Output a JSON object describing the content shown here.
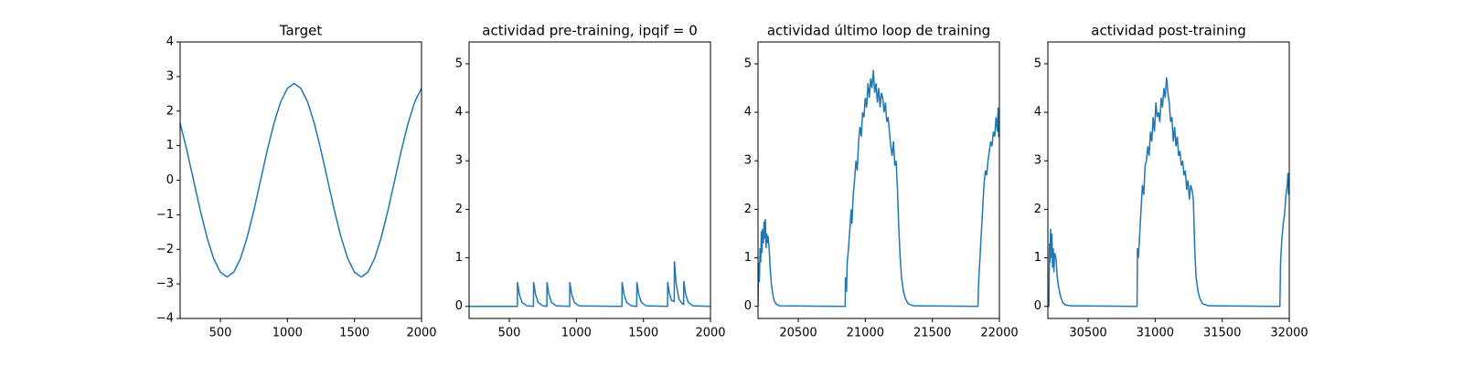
{
  "chart_data": [
    {
      "type": "line",
      "title": "Target",
      "color": "#1f77b4",
      "x": [
        200,
        250,
        300,
        350,
        400,
        450,
        500,
        550,
        600,
        650,
        700,
        750,
        800,
        850,
        900,
        950,
        1000,
        1050,
        1100,
        1150,
        1200,
        1250,
        1300,
        1350,
        1400,
        1450,
        1500,
        1550,
        1600,
        1650,
        1700,
        1750,
        1800,
        1850,
        1900,
        1950,
        2000
      ],
      "values": [
        1.65,
        0.87,
        0,
        -0.87,
        -1.65,
        -2.27,
        -2.66,
        -2.8,
        -2.66,
        -2.27,
        -1.65,
        -0.87,
        0,
        0.87,
        1.65,
        2.27,
        2.66,
        2.8,
        2.66,
        2.27,
        1.65,
        0.87,
        0,
        -0.87,
        -1.65,
        -2.27,
        -2.66,
        -2.8,
        -2.66,
        -2.27,
        -1.65,
        -0.87,
        0,
        0.87,
        1.65,
        2.27,
        2.66
      ],
      "xlim": [
        200,
        2000
      ],
      "xticks": [
        500,
        1000,
        1500,
        2000
      ],
      "ylim": [
        -4,
        4
      ],
      "yticks": [
        {
          "value": -4,
          "label": "−4"
        },
        {
          "value": -3,
          "label": "−3"
        },
        {
          "value": -2,
          "label": "−2"
        },
        {
          "value": -1,
          "label": "−1"
        },
        0,
        1,
        2,
        3,
        4
      ]
    },
    {
      "type": "line",
      "title": "actividad pre-training, ipqif = 0",
      "color": "#1f77b4",
      "x": [
        200,
        560,
        561,
        575,
        595,
        630,
        680,
        681,
        695,
        715,
        750,
        780,
        781,
        795,
        815,
        850,
        950,
        951,
        965,
        985,
        1020,
        1340,
        1341,
        1355,
        1375,
        1410,
        1450,
        1451,
        1465,
        1485,
        1520,
        1680,
        1681,
        1695,
        1710,
        1730,
        1731,
        1745,
        1765,
        1790,
        1800,
        1801,
        1815,
        1835,
        1870,
        2000
      ],
      "values": [
        0,
        0,
        0.5,
        0.25,
        0.08,
        0.01,
        0,
        0.5,
        0.25,
        0.08,
        0.01,
        0,
        0.5,
        0.25,
        0.08,
        0.01,
        0,
        0.5,
        0.25,
        0.08,
        0.01,
        0,
        0.5,
        0.25,
        0.08,
        0.01,
        0,
        0.5,
        0.25,
        0.08,
        0.01,
        0,
        0.5,
        0.25,
        0.12,
        0.1,
        0.93,
        0.45,
        0.15,
        0.05,
        0.04,
        0.52,
        0.25,
        0.08,
        0.01,
        0
      ],
      "xlim": [
        200,
        2000
      ],
      "xticks": [
        500,
        1000,
        1500,
        2000
      ],
      "ylim": [
        -0.25,
        5.45
      ],
      "yticks": [
        0,
        1,
        2,
        3,
        4,
        5
      ]
    },
    {
      "type": "line",
      "title": "actividad último loop de training",
      "color": "#1f77b4",
      "x": [
        20200,
        20205,
        20210,
        20215,
        20220,
        20225,
        20230,
        20235,
        20240,
        20245,
        20250,
        20255,
        20260,
        20265,
        20270,
        20275,
        20280,
        20285,
        20290,
        20300,
        20310,
        20320,
        20335,
        20360,
        20850,
        20852,
        20860,
        20865,
        20875,
        20885,
        20895,
        20900,
        20910,
        20920,
        20930,
        20940,
        20950,
        20960,
        20970,
        20980,
        20990,
        21000,
        21010,
        21020,
        21030,
        21040,
        21050,
        21060,
        21070,
        21080,
        21090,
        21100,
        21110,
        21120,
        21130,
        21140,
        21150,
        21160,
        21170,
        21180,
        21190,
        21200,
        21210,
        21220,
        21230,
        21240,
        21250,
        21260,
        21270,
        21285,
        21300,
        21320,
        21360,
        21840,
        21845,
        21855,
        21865,
        21875,
        21885,
        21895,
        21905,
        21915,
        21925,
        21935,
        21945,
        21955,
        21965,
        21975,
        21985,
        21990,
        21995,
        22000
      ],
      "values": [
        0,
        0.9,
        0.5,
        1.2,
        0.9,
        1.55,
        1.1,
        1.6,
        1.3,
        1.75,
        1.4,
        1.8,
        1.2,
        1.5,
        1.3,
        1.45,
        1.3,
        1.1,
        0.8,
        0.45,
        0.25,
        0.12,
        0.05,
        0.01,
        0,
        0.6,
        0.3,
        0.9,
        1.2,
        1.6,
        2.0,
        1.7,
        2.3,
        2.6,
        3.0,
        2.8,
        3.4,
        3.7,
        3.5,
        4.0,
        3.9,
        4.3,
        4.1,
        4.6,
        4.3,
        4.7,
        4.5,
        4.87,
        4.4,
        4.6,
        4.2,
        4.5,
        4.1,
        4.4,
        4.3,
        4.0,
        4.2,
        3.8,
        3.9,
        3.6,
        3.3,
        3.1,
        3.4,
        2.9,
        3.0,
        2.4,
        1.6,
        1.0,
        0.6,
        0.3,
        0.15,
        0.05,
        0.01,
        0,
        0.5,
        1.0,
        1.5,
        2.0,
        2.5,
        2.8,
        2.7,
        3.0,
        3.2,
        3.4,
        3.3,
        3.6,
        3.5,
        3.9,
        3.6,
        4.1,
        3.5,
        3.5
      ],
      "xlim": [
        20200,
        22000
      ],
      "xticks": [
        20500,
        21000,
        21500,
        22000
      ],
      "ylim": [
        -0.25,
        5.45
      ],
      "yticks": [
        0,
        1,
        2,
        3,
        4,
        5
      ]
    },
    {
      "type": "line",
      "title": "actividad post-training",
      "color": "#1f77b4",
      "x": [
        30200,
        30208,
        30212,
        30216,
        30220,
        30225,
        30230,
        30235,
        30240,
        30245,
        30250,
        30260,
        30270,
        30280,
        30295,
        30310,
        30330,
        30370,
        30865,
        30868,
        30875,
        30885,
        30895,
        30905,
        30915,
        30925,
        30935,
        30945,
        30955,
        30965,
        30975,
        30985,
        30995,
        31005,
        31015,
        31025,
        31035,
        31045,
        31055,
        31065,
        31075,
        31085,
        31095,
        31105,
        31115,
        31125,
        31135,
        31145,
        31155,
        31165,
        31175,
        31185,
        31195,
        31205,
        31215,
        31225,
        31235,
        31245,
        31255,
        31265,
        31275,
        31285,
        31295,
        31305,
        31320,
        31335,
        31355,
        31400,
        31930,
        31935,
        31945,
        31955,
        31965,
        31975,
        31985,
        31990,
        31995,
        32000
      ],
      "values": [
        0,
        0,
        1.3,
        0.9,
        1.6,
        1.0,
        1.5,
        0.8,
        1.2,
        0.7,
        1.1,
        1.0,
        0.6,
        0.4,
        0.2,
        0.08,
        0.03,
        0.01,
        0,
        1.2,
        1.0,
        1.5,
        2.0,
        2.5,
        2.3,
        2.9,
        3.0,
        3.3,
        3.1,
        3.6,
        3.4,
        3.9,
        3.6,
        4.2,
        3.9,
        4.0,
        3.8,
        4.3,
        4.1,
        4.5,
        4.3,
        4.72,
        4.4,
        4.2,
        3.8,
        3.9,
        3.4,
        3.7,
        3.3,
        3.5,
        3.1,
        3.2,
        2.9,
        3.0,
        2.7,
        2.8,
        2.4,
        2.6,
        2.2,
        2.5,
        2.4,
        2.2,
        1.2,
        0.6,
        0.3,
        0.15,
        0.05,
        0.01,
        0,
        0.9,
        1.4,
        1.7,
        1.9,
        2.3,
        2.5,
        2.75,
        2.3,
        2.6
      ],
      "xlim": [
        30200,
        32000
      ],
      "xticks": [
        30500,
        31000,
        31500,
        32000
      ],
      "ylim": [
        -0.25,
        5.45
      ],
      "yticks": [
        0,
        1,
        2,
        3,
        4,
        5
      ]
    }
  ]
}
